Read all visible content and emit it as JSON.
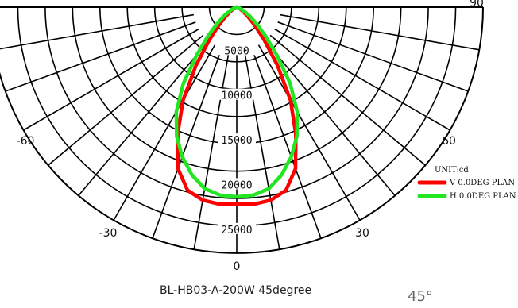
{
  "chart_data": {
    "type": "polar",
    "title": "BL-HB03-A-200W 45degree",
    "side_label": "45°",
    "unit_label": "UNIT:cd",
    "radial_max": 27500,
    "radial_ticks": [
      "5000",
      "10000",
      "15000",
      "20000",
      "25000"
    ],
    "radial_tick_values": [
      5000,
      10000,
      15000,
      20000,
      25000
    ],
    "angle_ticks": [
      {
        "label": "-60",
        "value": -60
      },
      {
        "label": "-30",
        "value": -30
      },
      {
        "label": "0",
        "value": 0
      },
      {
        "label": "30",
        "value": 30
      },
      {
        "label": "60",
        "value": 60
      },
      {
        "label": "90",
        "value": 90
      }
    ],
    "legend": {
      "placement": "right"
    },
    "series": [
      {
        "name": "V 0.0DEG PLAN",
        "color": "#ff0000",
        "points": [
          [
            0,
            22000
          ],
          [
            5,
            22100
          ],
          [
            10,
            21900
          ],
          [
            15,
            21200
          ],
          [
            20,
            19200
          ],
          [
            25,
            15600
          ],
          [
            30,
            12000
          ],
          [
            35,
            7900
          ],
          [
            40,
            4700
          ],
          [
            45,
            2800
          ],
          [
            50,
            1600
          ],
          [
            55,
            900
          ],
          [
            60,
            500
          ],
          [
            70,
            200
          ],
          [
            80,
            80
          ],
          [
            90,
            0
          ]
        ]
      },
      {
        "name": "H 0.0DEG PLAN",
        "color": "#22e622",
        "points": [
          [
            0,
            21200
          ],
          [
            5,
            21100
          ],
          [
            10,
            20600
          ],
          [
            15,
            19400
          ],
          [
            20,
            17800
          ],
          [
            25,
            15900
          ],
          [
            30,
            13500
          ],
          [
            35,
            10400
          ],
          [
            40,
            6900
          ],
          [
            45,
            4500
          ],
          [
            50,
            2900
          ],
          [
            55,
            1800
          ],
          [
            60,
            1000
          ],
          [
            70,
            400
          ],
          [
            80,
            120
          ],
          [
            90,
            0
          ]
        ]
      }
    ]
  }
}
